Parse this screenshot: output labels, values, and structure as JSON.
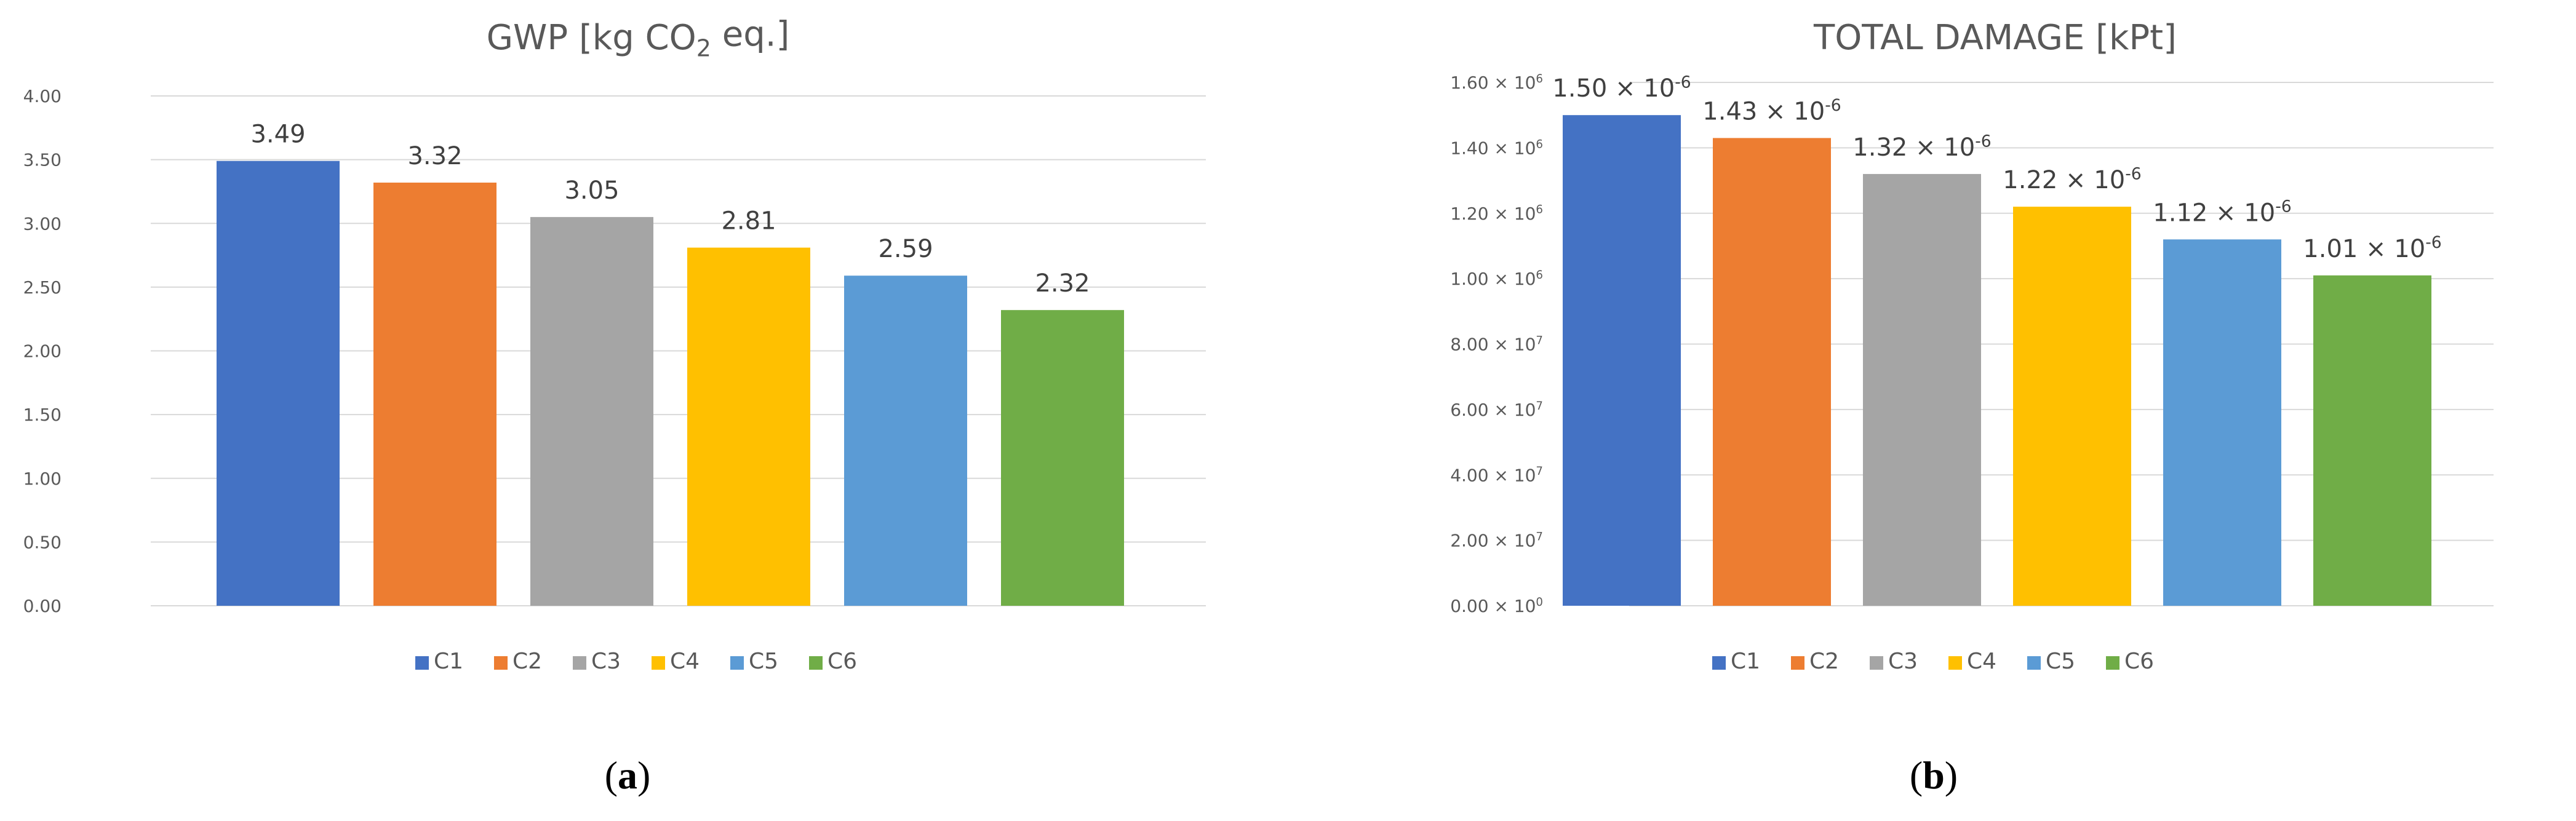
{
  "chart_data": [
    {
      "type": "bar",
      "title": "GWP [kg CO",
      "title_sub": "2",
      "title_suffix": " eq.]",
      "caption_letter": "a",
      "categories": [
        "C1",
        "C2",
        "C3",
        "C4",
        "C5",
        "C6"
      ],
      "values": [
        3.49,
        3.32,
        3.05,
        2.81,
        2.59,
        2.32
      ],
      "data_labels": [
        "3.49",
        "3.32",
        "3.05",
        "2.81",
        "2.59",
        "2.32"
      ],
      "ylim": [
        0,
        4
      ],
      "y_ticks": [
        "0.00",
        "0.50",
        "1.00",
        "1.50",
        "2.00",
        "2.50",
        "3.00",
        "3.50",
        "4.00"
      ],
      "grid": true,
      "legend": "bottom"
    },
    {
      "type": "bar",
      "title": "TOTAL DAMAGE [kPt]",
      "caption_letter": "b",
      "categories": [
        "C1",
        "C2",
        "C3",
        "C4",
        "C5",
        "C6"
      ],
      "values": [
        1.5e-06,
        1.43e-06,
        1.32e-06,
        1.22e-06,
        1.12e-06,
        1.01e-06
      ],
      "data_labels": [
        {
          "mantissa": "1.50 × 10",
          "exp": "-6"
        },
        {
          "mantissa": "1.43 × 10",
          "exp": "-6"
        },
        {
          "mantissa": "1.32 × 10",
          "exp": "-6"
        },
        {
          "mantissa": "1.22 × 10",
          "exp": "-6"
        },
        {
          "mantissa": "1.12 × 10",
          "exp": "-6"
        },
        {
          "mantissa": "1.01 × 10",
          "exp": "-6"
        }
      ],
      "ylim": [
        0,
        1.6e-06
      ],
      "y_ticks": [
        {
          "mantissa": "0.00 × 10",
          "exp": "0"
        },
        {
          "mantissa": "2.00 × 10",
          "exp": "7"
        },
        {
          "mantissa": "4.00 × 10",
          "exp": "7"
        },
        {
          "mantissa": "6.00 × 10",
          "exp": "7"
        },
        {
          "mantissa": "8.00 × 10",
          "exp": "7"
        },
        {
          "mantissa": "1.00 × 10",
          "exp": "6"
        },
        {
          "mantissa": "1.20 × 10",
          "exp": "6"
        },
        {
          "mantissa": "1.40 × 10",
          "exp": "6"
        },
        {
          "mantissa": "1.60 × 10",
          "exp": "6"
        }
      ],
      "grid": true,
      "legend": "bottom"
    }
  ],
  "colors": [
    "#4472C4",
    "#ED7D31",
    "#A5A5A5",
    "#FFC000",
    "#5B9BD5",
    "#70AD47"
  ]
}
